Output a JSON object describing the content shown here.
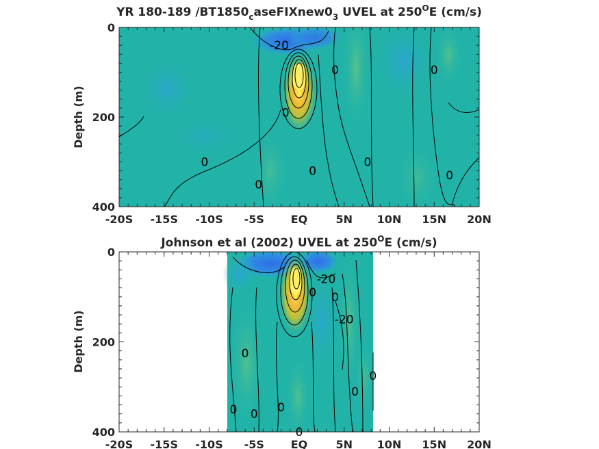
{
  "chart_data": [
    {
      "type": "contour",
      "title_main": "YR 180-189 /BT1850",
      "title_sub1": "c",
      "title_mid": "aseFIXnew0",
      "title_sub2": "3",
      "title_end": " UVEL at 250",
      "title_sup": "O",
      "title_tail": "E (cm/s)",
      "ylabel": "Depth (m)",
      "xlim": [
        -20,
        20
      ],
      "ylim": [
        0,
        400
      ],
      "x_ticks": [
        -20,
        -15,
        -10,
        -5,
        0,
        5,
        10,
        15,
        20
      ],
      "x_tick_labels": [
        "-20S",
        "-15S",
        "-10S",
        "-5S",
        "EQ",
        "5N",
        "10N",
        "15N",
        "20N"
      ],
      "y_ticks": [
        0,
        200,
        400
      ],
      "y_tick_labels": [
        "0",
        "200",
        "400"
      ],
      "data_extent_x": [
        -20,
        20
      ],
      "contour_labels": [
        {
          "text": "-20",
          "x": -2.2,
          "y": 40
        },
        {
          "text": "0",
          "x": 4,
          "y": 95
        },
        {
          "text": "0",
          "x": 15,
          "y": 95
        },
        {
          "text": "0",
          "x": -10.5,
          "y": 300
        },
        {
          "text": "0",
          "x": -4.5,
          "y": 350
        },
        {
          "text": "0",
          "x": 1.5,
          "y": 320
        },
        {
          "text": "0",
          "x": 7.6,
          "y": 300
        },
        {
          "text": "0",
          "x": 16.7,
          "y": 330
        },
        {
          "text": "0",
          "x": -1.5,
          "y": 190
        }
      ]
    },
    {
      "type": "contour",
      "title_main": "Johnson et al (2002) UVEL at 250",
      "title_sup": "O",
      "title_tail": "E (cm/s)",
      "ylabel": "Depth (m)",
      "xlim": [
        -20,
        20
      ],
      "ylim": [
        0,
        400
      ],
      "x_ticks": [
        -20,
        -15,
        -10,
        -5,
        0,
        5,
        10,
        15,
        20
      ],
      "x_tick_labels": [
        "-20S",
        "-15S",
        "-10S",
        "-5S",
        "EQ",
        "5N",
        "10N",
        "15N",
        "20N"
      ],
      "y_ticks": [
        0,
        200,
        400
      ],
      "y_tick_labels": [
        "0",
        "200",
        "400"
      ],
      "data_extent_x": [
        -8,
        8.2
      ],
      "contour_labels": [
        {
          "text": "-20",
          "x": 3.0,
          "y": 60
        },
        {
          "text": "0",
          "x": 4,
          "y": 100
        },
        {
          "text": "-20",
          "x": 5,
          "y": 150
        },
        {
          "text": "0",
          "x": -6,
          "y": 225
        },
        {
          "text": "0",
          "x": 8.2,
          "y": 275
        },
        {
          "text": "0",
          "x": 6.2,
          "y": 310
        },
        {
          "text": "0",
          "x": -7.3,
          "y": 350
        },
        {
          "text": "0",
          "x": -5,
          "y": 360
        },
        {
          "text": "0",
          "x": -2,
          "y": 345
        },
        {
          "text": "0",
          "x": 1.5,
          "y": 90
        },
        {
          "text": "0",
          "x": 0,
          "y": 400
        }
      ]
    }
  ]
}
